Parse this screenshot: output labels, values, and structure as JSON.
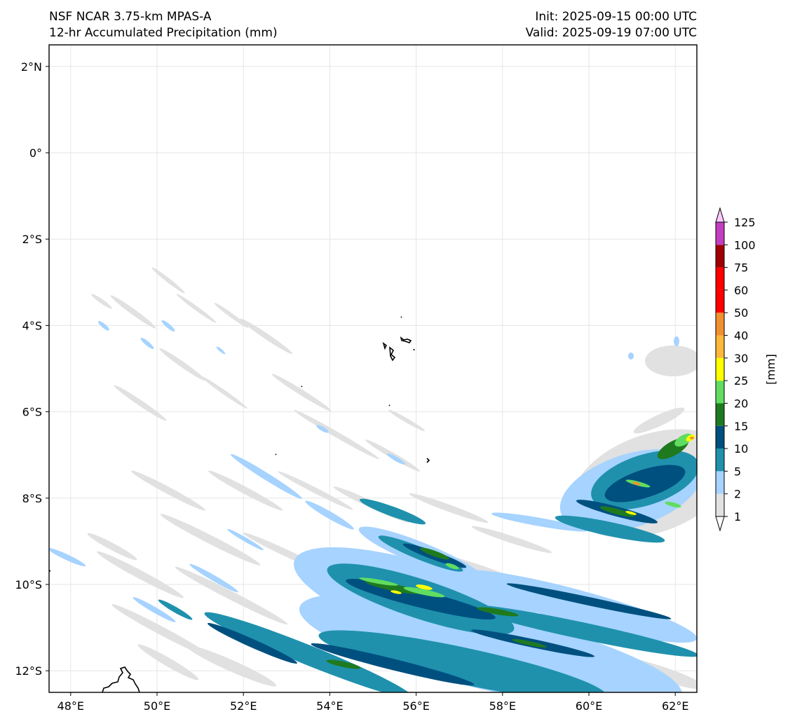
{
  "header": {
    "model": "NSF NCAR 3.75-km MPAS-A",
    "field": "12-hr Accumulated Precipitation (mm)",
    "init": "Init: 2025-09-15 00:00 UTC",
    "valid": "Valid: 2025-09-19 07:00 UTC"
  },
  "map": {
    "lon_range": [
      47.5,
      62.5
    ],
    "lat_range": [
      -12.5,
      2.5
    ],
    "lon_ticks": [
      {
        "value": 48,
        "label": "48°E"
      },
      {
        "value": 50,
        "label": "50°E"
      },
      {
        "value": 52,
        "label": "52°E"
      },
      {
        "value": 54,
        "label": "54°E"
      },
      {
        "value": 56,
        "label": "56°E"
      },
      {
        "value": 58,
        "label": "58°E"
      },
      {
        "value": 60,
        "label": "60°E"
      },
      {
        "value": 62,
        "label": "62°E"
      }
    ],
    "lat_ticks": [
      {
        "value": 2,
        "label": "2°N"
      },
      {
        "value": 0,
        "label": "0°"
      },
      {
        "value": -2,
        "label": "2°S"
      },
      {
        "value": -4,
        "label": "4°S"
      },
      {
        "value": -6,
        "label": "6°S"
      },
      {
        "value": -8,
        "label": "8°S"
      },
      {
        "value": -10,
        "label": "10°S"
      },
      {
        "value": -12,
        "label": "12°S"
      }
    ],
    "grid": true,
    "grid_color": "#e6e6e6",
    "coastline_color": "#000000"
  },
  "colorbar": {
    "unit_label": "[mm]",
    "levels": [
      "1",
      "2",
      "5",
      "10",
      "15",
      "20",
      "25",
      "30",
      "40",
      "50",
      "60",
      "75",
      "100",
      "125"
    ],
    "colors": [
      "#e1e1e1",
      "#a6d3ff",
      "#1f91ad",
      "#00507f",
      "#1f7a1f",
      "#60dd60",
      "#ffff00",
      "#fcb83a",
      "#f09030",
      "#ff0000",
      "#ff0000",
      "#a00000",
      "#c13ec1",
      "#ffc8ff"
    ],
    "extend": "both"
  }
}
